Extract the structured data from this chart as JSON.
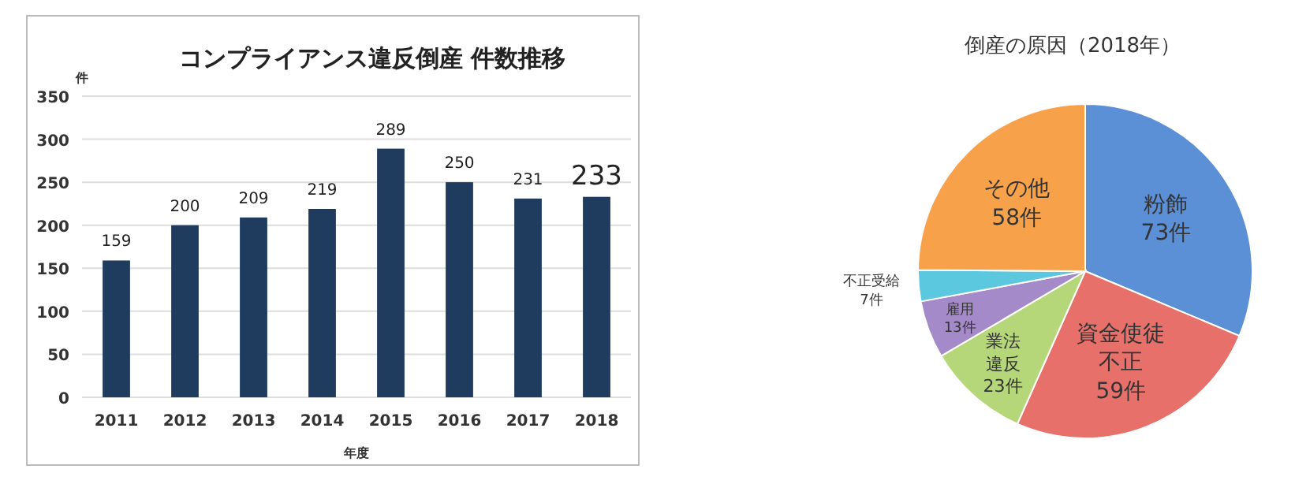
{
  "chart_data": [
    {
      "type": "bar",
      "title": "コンプライアンス違反倒産 件数推移",
      "ylabel": "件",
      "xlabel": "年度",
      "categories": [
        "2011",
        "2012",
        "2013",
        "2014",
        "2015",
        "2016",
        "2017",
        "2018"
      ],
      "values": [
        159,
        200,
        209,
        219,
        289,
        250,
        231,
        233
      ],
      "color": "#1f3b5e",
      "ylim": [
        0,
        350
      ],
      "yticks": [
        0,
        50,
        100,
        150,
        200,
        250,
        300,
        350
      ],
      "grid": "y",
      "data_labels": true
    },
    {
      "type": "pie",
      "title": "倒産の原因（2018年）",
      "categories": [
        "粉飾",
        "資金使徒不正",
        "業法違反",
        "雇用",
        "不正受給",
        "その他"
      ],
      "values": [
        73,
        59,
        23,
        13,
        7,
        58
      ],
      "value_labels": [
        "73件",
        "59件",
        "23件",
        "13件",
        "7件",
        "58件"
      ],
      "colors": [
        "#5b8fd6",
        "#e8706a",
        "#b5d77a",
        "#a58ac9",
        "#5cc8e0",
        "#f7a24a"
      ]
    }
  ]
}
